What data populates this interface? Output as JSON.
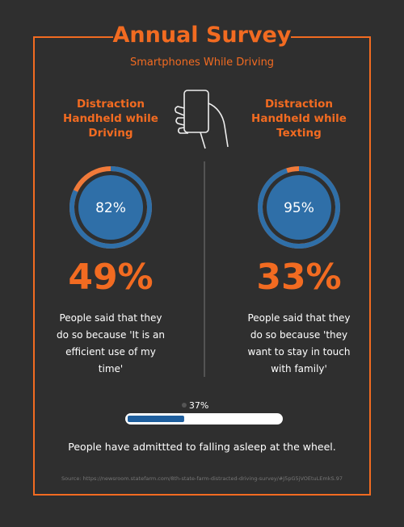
{
  "header": {
    "title": "Annual Survey",
    "subtitle": "Smartphones While Driving"
  },
  "panels": [
    {
      "heading": "Distraction Handheld while Driving",
      "ring": {
        "value": 82,
        "value_label": "82%",
        "lim": [
          0,
          100
        ]
      },
      "stat": "49%",
      "text": "People said that they do so because 'It is an efficient use of my time'"
    },
    {
      "heading": "Distraction Handheld while Texting",
      "ring": {
        "value": 95,
        "value_label": "95%",
        "lim": [
          0,
          100
        ]
      },
      "stat": "33%",
      "text": "People said that they do so because 'they want to stay in touch with family'"
    }
  ],
  "progress": {
    "value": 37,
    "value_label": "37%",
    "lim": [
      0,
      100
    ],
    "text": "People have admittted to falling asleep at the wheel."
  },
  "source": "Source: https://newsroom.statefarm.com/8th-state-farm-distracted-driving-survey/#J5pG5jVOEtuLEmkS.97"
}
